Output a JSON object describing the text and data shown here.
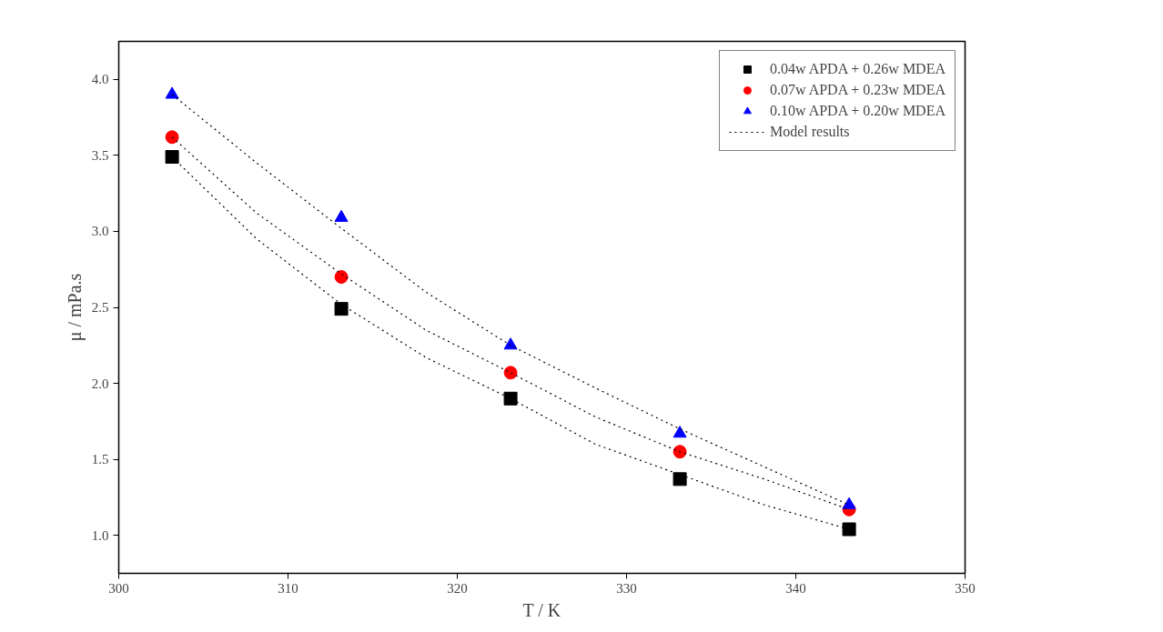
{
  "chart_data": {
    "type": "scatter",
    "xlabel": "T / K",
    "ylabel": "μ / mPa.s",
    "x": [
      303.15,
      313.15,
      323.15,
      333.15,
      343.15
    ],
    "xlim": [
      300,
      350
    ],
    "xticks": [
      300,
      310,
      320,
      330,
      340,
      350
    ],
    "ylim": [
      0.75,
      4.25
    ],
    "yticks": [
      {
        "value": 1,
        "label": "1.0"
      },
      {
        "value": 1.5,
        "label": "1.5"
      },
      {
        "value": 2,
        "label": "2.0"
      },
      {
        "value": 2.5,
        "label": "2.5"
      },
      {
        "value": 3,
        "label": "3.0"
      },
      {
        "value": 3.5,
        "label": "3.5"
      },
      {
        "value": 4,
        "label": "4.0"
      }
    ],
    "grid": false,
    "legend": "top right",
    "series": [
      {
        "name": "0.04w APDA + 0.26w MDEA",
        "color": "#000000",
        "marker": "square",
        "values": [
          3.49,
          2.49,
          1.9,
          1.37,
          1.04
        ]
      },
      {
        "name": "0.07w APDA + 0.23w MDEA",
        "color": "#ff0000",
        "marker": "circle",
        "values": [
          3.62,
          2.7,
          2.07,
          1.55,
          1.17
        ]
      },
      {
        "name": "0.10w APDA + 0.20w MDEA",
        "color": "#0000ff",
        "marker": "triangle",
        "values": [
          3.9,
          3.09,
          2.25,
          1.67,
          1.2
        ]
      },
      {
        "name": "Model results",
        "type": "line",
        "line_style": "dotted",
        "color": "#000000",
        "x": [
          303.15,
          308.15,
          313.15,
          318.15,
          323.15,
          328.15,
          333.15,
          338.15,
          343.15
        ],
        "values": [
          3.49,
          2.95,
          2.52,
          2.17,
          1.9,
          1.6,
          1.4,
          1.2,
          1.04
        ]
      },
      {
        "type": "line",
        "line_style": "dotted",
        "color": "#000000",
        "x": [
          303.15,
          308.15,
          313.15,
          318.15,
          323.15,
          328.15,
          333.15,
          338.15,
          343.15
        ],
        "values": [
          3.62,
          3.12,
          2.72,
          2.35,
          2.07,
          1.78,
          1.55,
          1.37,
          1.17
        ]
      },
      {
        "type": "line",
        "line_style": "dotted",
        "color": "#000000",
        "x": [
          303.15,
          308.15,
          313.15,
          318.15,
          323.15,
          328.15,
          333.15,
          338.15,
          343.15
        ],
        "values": [
          3.9,
          3.45,
          3.02,
          2.6,
          2.25,
          1.97,
          1.7,
          1.45,
          1.2
        ]
      }
    ]
  }
}
